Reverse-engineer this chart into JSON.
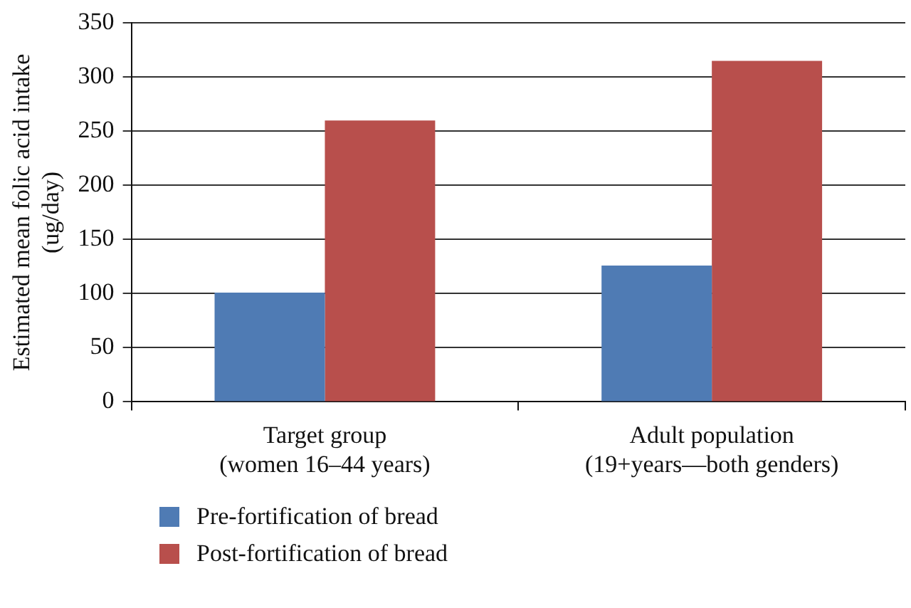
{
  "chart_data": {
    "type": "bar",
    "ylabel": "Estimated mean folic acid intake\n(ug/day)",
    "categories": [
      "Target group\n(women 16–44 years)",
      "Adult population\n(19+years—both genders)"
    ],
    "series": [
      {
        "name": "Pre-fortification of bread",
        "color": "#4f7bb4",
        "values": [
          101,
          126
        ]
      },
      {
        "name": "Post-fortification of bread",
        "color": "#b84f4c",
        "values": [
          260,
          315
        ]
      }
    ],
    "ylim": [
      0,
      350
    ],
    "yticks": [
      0,
      50,
      100,
      150,
      200,
      250,
      300,
      350
    ],
    "grid": "y",
    "legend": "bottom left"
  }
}
